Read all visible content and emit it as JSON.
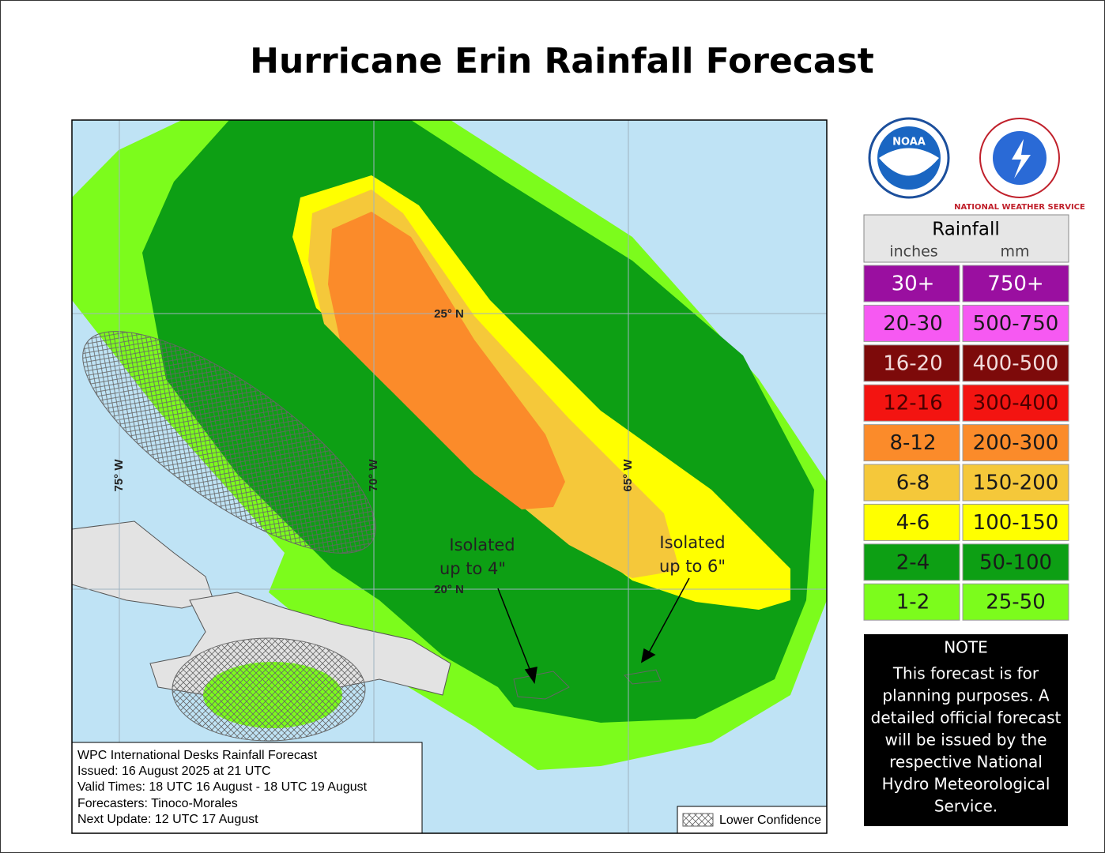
{
  "title": "Hurricane Erin Rainfall Forecast",
  "map": {
    "grid_labels": [
      "25° N",
      "20° N",
      "75° W",
      "70° W",
      "65° W"
    ],
    "annotations": [
      [
        "Isolated",
        "up to 4\""
      ],
      [
        "Isolated",
        "up to 6\""
      ]
    ]
  },
  "info": [
    "WPC International Desks Rainfall Forecast",
    "Issued: 16 August 2025 at 21 UTC",
    "Valid Times: 18 UTC 16 August - 18 UTC 19 August",
    "Forecasters: Tinoco-Morales",
    "Next Update: 12 UTC 17 August"
  ],
  "lower_confidence": "Lower Confidence",
  "logos": [
    "NOAA",
    "NATIONAL WEATHER SERVICE"
  ],
  "legend": {
    "title": "Rainfall",
    "units": [
      "inches",
      "mm"
    ],
    "rows": [
      {
        "inches": "30+",
        "mm": "750+",
        "color": "#9a0fa0",
        "text_color": "#ffffff"
      },
      {
        "inches": "20-30",
        "mm": "500-750",
        "color": "#f659f2",
        "text_color": "#1a1a1a"
      },
      {
        "inches": "16-20",
        "mm": "400-500",
        "color": "#7d0a0a",
        "text_color": "#f2dcdc"
      },
      {
        "inches": "12-16",
        "mm": "300-400",
        "color": "#f31411",
        "text_color": "#4a0000"
      },
      {
        "inches": "8-12",
        "mm": "200-300",
        "color": "#fb8b2a",
        "text_color": "#1a1a1a"
      },
      {
        "inches": "6-8",
        "mm": "150-200",
        "color": "#f5c83a",
        "text_color": "#1a1a1a"
      },
      {
        "inches": "4-6",
        "mm": "100-150",
        "color": "#ffff00",
        "text_color": "#1a1a1a"
      },
      {
        "inches": "2-4",
        "mm": "50-100",
        "color": "#0d9f14",
        "text_color": "#1a1a1a"
      },
      {
        "inches": "1-2",
        "mm": "25-50",
        "color": "#7cfc1c",
        "text_color": "#1a1a1a"
      }
    ]
  },
  "note": {
    "title": "NOTE",
    "lines": [
      "This forecast is for",
      "planning purposes. A",
      "detailed official forecast",
      "will be issued by the",
      "respective National",
      "Hydro Meteorological",
      "Service."
    ]
  }
}
